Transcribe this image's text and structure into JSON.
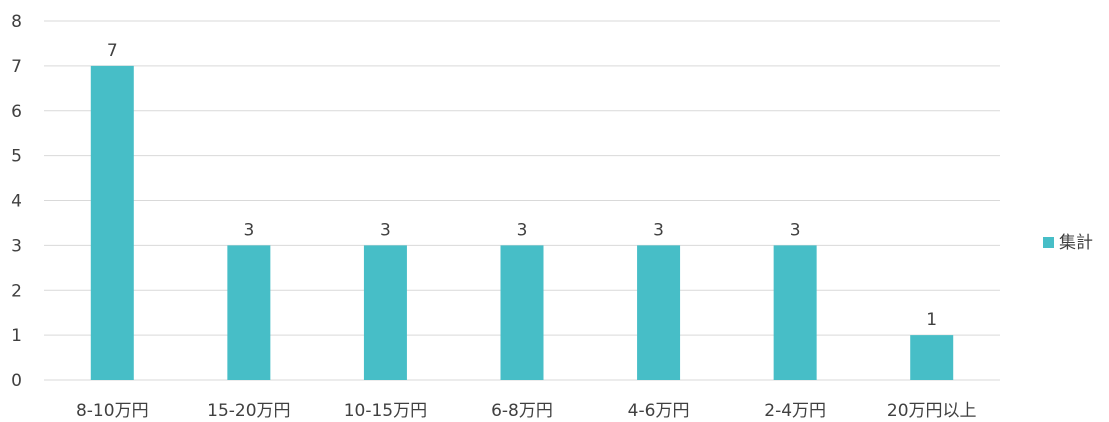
{
  "chart_data": {
    "type": "bar",
    "categories": [
      "8-10万円",
      "15-20万円",
      "10-15万円",
      "6-8万円",
      "4-6万円",
      "2-4万円",
      "20万円以上"
    ],
    "series": [
      {
        "name": "集計",
        "values": [
          7,
          3,
          3,
          3,
          3,
          3,
          1
        ],
        "color": "#47bec7"
      }
    ],
    "ylim": [
      0,
      8
    ],
    "yticks": [
      0,
      1,
      2,
      3,
      4,
      5,
      6,
      7,
      8
    ],
    "grid": true,
    "data_labels": true,
    "legend": "right"
  }
}
